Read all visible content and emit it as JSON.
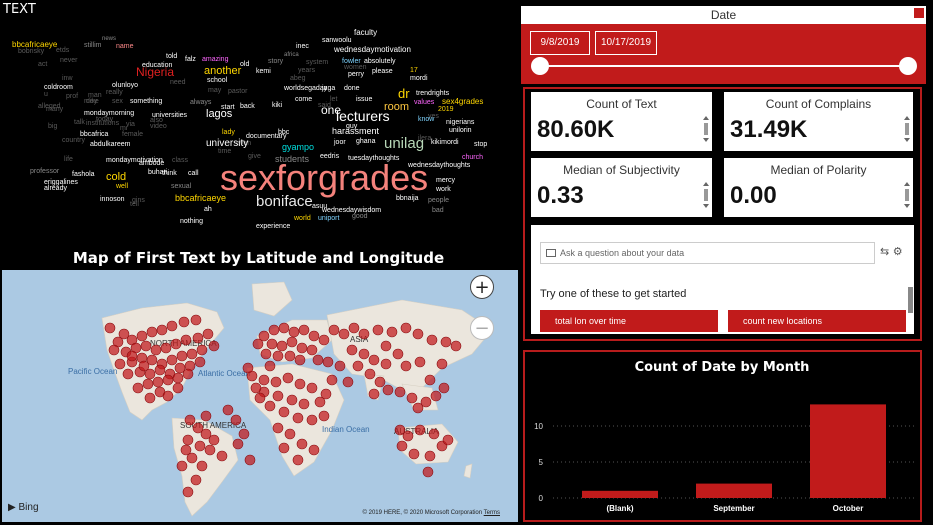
{
  "wordcloud": {
    "title": "TEXT",
    "words": [
      {
        "text": "sexforgrades",
        "color": "#f4827c"
      },
      {
        "text": "unilag",
        "color": "#b8d8b8"
      },
      {
        "text": "boniface",
        "color": "#e8e8e8"
      },
      {
        "text": "lecturers",
        "color": "#ffffff"
      },
      {
        "text": "Nigeria",
        "color": "#e02020"
      },
      {
        "text": "another",
        "color": "#ffd700"
      },
      {
        "text": "room",
        "color": "#ffc840"
      },
      {
        "text": "lagos",
        "color": "#ffffff"
      },
      {
        "text": "cold",
        "color": "#ffd700"
      },
      {
        "text": "dr",
        "color": "#ffd700"
      },
      {
        "text": "one",
        "color": "#ffffff"
      },
      {
        "text": "university",
        "color": "#ffffff"
      },
      {
        "text": "gyampo",
        "color": "#00e0e0"
      },
      {
        "text": "students",
        "color": "#888888"
      },
      {
        "text": "bbcafricaeye",
        "color": "#ffd700"
      },
      {
        "text": "harassment",
        "color": "#ffffff"
      },
      {
        "text": "sex4grades",
        "color": "#ffd700"
      },
      {
        "text": "wednesdaymotivation",
        "color": "#ffffff"
      },
      {
        "text": "faculty",
        "color": "#ffffff"
      },
      {
        "text": "bbcafricaeye",
        "color": "#ffd700"
      },
      {
        "text": "stillim",
        "color": "#888888"
      },
      {
        "text": "name",
        "color": "#ff8a8a"
      },
      {
        "text": "news",
        "color": "#888888"
      },
      {
        "text": "told",
        "color": "#ffffff"
      },
      {
        "text": "amazing",
        "color": "#ff66ff"
      },
      {
        "text": "falz",
        "color": "#ffffff"
      },
      {
        "text": "old",
        "color": "#ffffff"
      },
      {
        "text": "story",
        "color": "#888888"
      },
      {
        "text": "africa",
        "color": "#888888"
      },
      {
        "text": "inec",
        "color": "#ffffff"
      },
      {
        "text": "sanwoolu",
        "color": "#ffffff"
      },
      {
        "text": "fowler",
        "color": "#7fd4ff"
      },
      {
        "text": "absolutely",
        "color": "#ffffff"
      },
      {
        "text": "education",
        "color": "#ffffff"
      },
      {
        "text": "kemi",
        "color": "#ffffff"
      },
      {
        "text": "school",
        "color": "#ffffff"
      },
      {
        "text": "perry",
        "color": "#ffffff"
      },
      {
        "text": "please",
        "color": "#ffffff"
      },
      {
        "text": "17",
        "color": "#ffd700"
      },
      {
        "text": "mordi",
        "color": "#ffffff"
      },
      {
        "text": "coldroom",
        "color": "#ffffff"
      },
      {
        "text": "olunloyo",
        "color": "#ffffff"
      },
      {
        "text": "done",
        "color": "#ffffff"
      },
      {
        "text": "jaga",
        "color": "#ffffff"
      },
      {
        "text": "issue",
        "color": "#ffffff"
      },
      {
        "text": "worldsegaday",
        "color": "#ffffff"
      },
      {
        "text": "trendrights",
        "color": "#ffffff"
      },
      {
        "text": "mondaymorning",
        "color": "#ffffff"
      },
      {
        "text": "universities",
        "color": "#ffffff"
      },
      {
        "text": "something",
        "color": "#ffffff"
      },
      {
        "text": "always",
        "color": "#888888"
      },
      {
        "text": "start",
        "color": "#ffffff"
      },
      {
        "text": "back",
        "color": "#ffffff"
      },
      {
        "text": "kiki",
        "color": "#ffffff"
      },
      {
        "text": "come",
        "color": "#ffffff"
      },
      {
        "text": "values",
        "color": "#ff66ff"
      },
      {
        "text": "2019",
        "color": "#ffd700"
      },
      {
        "text": "know",
        "color": "#7fd4ff"
      },
      {
        "text": "nigerians",
        "color": "#ffffff"
      },
      {
        "text": "unilorin",
        "color": "#ffffff"
      },
      {
        "text": "kikimordi",
        "color": "#ffffff"
      },
      {
        "text": "stop",
        "color": "#ffffff"
      },
      {
        "text": "church",
        "color": "#ff66ff"
      },
      {
        "text": "bbcafrica",
        "color": "#ffffff"
      },
      {
        "text": "abdulkareem",
        "color": "#ffffff"
      },
      {
        "text": "mondaymotivation",
        "color": "#ffffff"
      },
      {
        "text": "ambode",
        "color": "#ffffff"
      },
      {
        "text": "buhari",
        "color": "#ffffff"
      },
      {
        "text": "think",
        "color": "#ffffff"
      },
      {
        "text": "call",
        "color": "#ffffff"
      },
      {
        "text": "sexual",
        "color": "#888888"
      },
      {
        "text": "documentary",
        "color": "#ffffff"
      },
      {
        "text": "eedris",
        "color": "#ffffff"
      },
      {
        "text": "tuesdaythoughts",
        "color": "#ffffff"
      },
      {
        "text": "wednesdaythoughts",
        "color": "#ffffff"
      },
      {
        "text": "fashola",
        "color": "#ffffff"
      },
      {
        "text": "eriggalines",
        "color": "#ffffff"
      },
      {
        "text": "well",
        "color": "#ffd700"
      },
      {
        "text": "innoson",
        "color": "#ffffff"
      },
      {
        "text": "nothing",
        "color": "#ffffff"
      },
      {
        "text": "ah",
        "color": "#ffffff"
      },
      {
        "text": "wednesdaywisdom",
        "color": "#ffffff"
      },
      {
        "text": "world",
        "color": "#ffd700"
      },
      {
        "text": "uniport",
        "color": "#7fd4ff"
      },
      {
        "text": "experience",
        "color": "#ffffff"
      },
      {
        "text": "good",
        "color": "#888888"
      },
      {
        "text": "bbnaija",
        "color": "#ffffff"
      },
      {
        "text": "mercy",
        "color": "#ffffff"
      },
      {
        "text": "work",
        "color": "#ffffff"
      },
      {
        "text": "people",
        "color": "#888888"
      },
      {
        "text": "bad",
        "color": "#888888"
      },
      {
        "text": "already",
        "color": "#ffffff"
      },
      {
        "text": "professor",
        "color": "#888888"
      },
      {
        "text": "asuu",
        "color": "#ffffff"
      },
      {
        "text": "ghana",
        "color": "#ffffff"
      },
      {
        "text": "joor",
        "color": "#ffffff"
      },
      {
        "text": "lady",
        "color": "#ffd700"
      },
      {
        "text": "bbc",
        "color": "#ffffff"
      },
      {
        "text": "guy",
        "color": "#ffffff"
      }
    ]
  },
  "map": {
    "title": "Map of First Text by Latitude and Longitude",
    "labels": {
      "north_america": "NORTH AMERICA",
      "south_america": "SOUTH AMERICA",
      "asia": "ASIA",
      "australia": "AUSTRALIA",
      "pacific": "Pacific Ocean",
      "atlantic": "Atlantic Ocean",
      "indian": "Indian Ocean"
    },
    "bing": "Bing",
    "copyright": "© 2019 HERE, © 2020 Microsoft Corporation",
    "terms": "Terms",
    "zoom_in": "+",
    "zoom_out": "−",
    "point_color": "#c0171b"
  },
  "date_slicer": {
    "title": "Date",
    "start": "9/8/2019",
    "end": "10/17/2019"
  },
  "kpis": [
    {
      "label": "Count of Text",
      "value": "80.60K"
    },
    {
      "label": "Count of Complains",
      "value": "31.49K"
    },
    {
      "label": "Median of Subjectivity",
      "value": "0.33"
    },
    {
      "label": "Median of Polarity",
      "value": "0.00"
    }
  ],
  "qa": {
    "placeholder": "Ask a question about your data",
    "try_text": "Try one of these to get started",
    "suggestions": [
      "total lon over time",
      "count new locations"
    ]
  },
  "chart_data": {
    "type": "bar",
    "title": "Count of Date by Month",
    "categories": [
      "(Blank)",
      "September",
      "October"
    ],
    "values": [
      1,
      2,
      13
    ],
    "ylim": [
      0,
      15
    ],
    "yticks": [
      0,
      5,
      10
    ],
    "grid": true,
    "bar_color": "#c11b1b"
  }
}
